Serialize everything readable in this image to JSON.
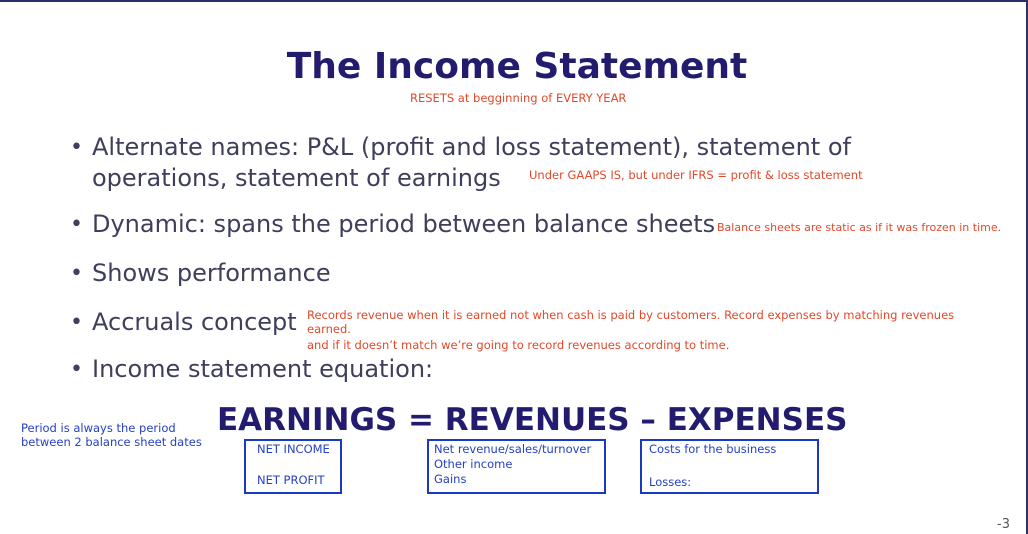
{
  "title": "The Income Statement",
  "subtitle_note": "RESETS at begginning of EVERY YEAR",
  "bullets": [
    {
      "lines": [
        "Alternate names: P&L (profit and loss statement), statement of",
        "operations, statement of earnings"
      ],
      "note": "Under GAAPS IS, but under IFRS = profit & loss statement"
    },
    {
      "text": "Dynamic: spans the period between balance sheets",
      "note": "Balance sheets are static as if it was frozen in time."
    },
    {
      "text": "Shows performance"
    },
    {
      "text": "Accruals concept",
      "notes": [
        "Records revenue when it is earned not when cash is paid by customers.   Record expenses by matching revenues",
        "earned.",
        "and if it doesn’t match we’re going to record revenues according to time."
      ]
    },
    {
      "text": "Income statement equation:"
    }
  ],
  "bullet_glyph": "•",
  "period_note": [
    "Period is always the period",
    "between 2 balance sheet dates"
  ],
  "equation": "EARNINGS = REVENUES – EXPENSES",
  "boxes": {
    "earnings": [
      "NET INCOME",
      "NET PROFIT"
    ],
    "revenues": [
      "Net revenue/sales/turnover",
      "Other income",
      "Gains"
    ],
    "expenses": [
      "Costs for the business",
      "Losses:"
    ]
  },
  "page_number": "-3",
  "colors": {
    "title": "#231c6e",
    "note": "#e0492a",
    "blue_annotation": "#2540c8",
    "body_text": "#3f3f5c"
  }
}
